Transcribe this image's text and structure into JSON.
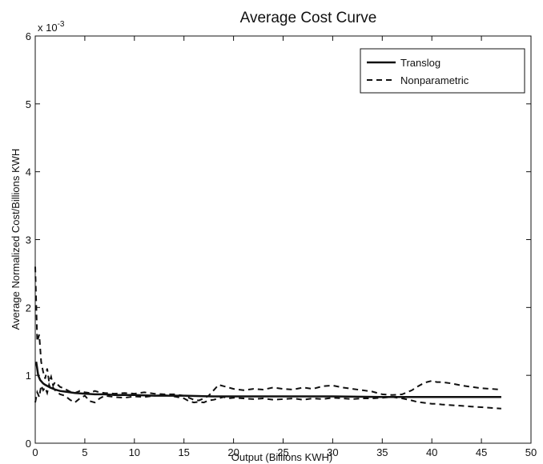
{
  "chart_data": {
    "type": "line",
    "title": "Average Cost Curve",
    "xlabel": "Output (Billions KWH)",
    "ylabel": "Average Normalized Cost/Billions KWH",
    "y_exponent_label": "x 10",
    "y_exponent_power": "-3",
    "xlim": [
      0,
      50
    ],
    "ylim": [
      0,
      6
    ],
    "x_ticks": [
      0,
      5,
      10,
      15,
      20,
      25,
      30,
      35,
      40,
      45,
      50
    ],
    "y_ticks": [
      0,
      1,
      2,
      3,
      4,
      5,
      6
    ],
    "grid": false,
    "legend_position": "top-right",
    "series": [
      {
        "name": "Translog",
        "style": "solid",
        "color": "#111111",
        "x": [
          0.1,
          0.3,
          0.5,
          0.8,
          1,
          1.5,
          2,
          2.5,
          3,
          4,
          5,
          6,
          7,
          8,
          10,
          12,
          15,
          18,
          20,
          25,
          30,
          35,
          40,
          45,
          47
        ],
        "y": [
          1.2,
          1.0,
          0.93,
          0.88,
          0.86,
          0.82,
          0.79,
          0.77,
          0.76,
          0.74,
          0.73,
          0.72,
          0.72,
          0.71,
          0.71,
          0.7,
          0.7,
          0.69,
          0.69,
          0.69,
          0.69,
          0.68,
          0.68,
          0.68,
          0.68
        ]
      },
      {
        "name": "Nonparametric",
        "style": "dashed",
        "color": "#111111",
        "bands": [
          {
            "x": [
              0,
              0.2,
              0.4,
              0.6,
              0.8,
              1.0,
              1.2,
              1.4,
              1.6,
              1.8,
              2.0,
              2.5,
              3,
              3.5,
              4,
              4.5,
              5,
              5.5,
              6,
              6.5,
              7,
              8,
              9,
              10,
              11,
              12,
              13,
              14,
              15,
              15.5,
              16,
              16.5,
              17,
              17.5,
              18,
              18.5,
              19,
              19.5,
              20,
              21,
              22,
              23,
              24,
              25,
              26,
              27,
              28,
              29,
              30,
              31,
              32,
              33,
              34,
              35,
              36,
              37,
              38,
              38.5,
              39,
              39.5,
              40,
              40.5,
              41,
              42,
              43,
              44,
              45,
              46,
              47
            ],
            "y": [
              2.6,
              1.5,
              1.6,
              1.2,
              1.05,
              0.95,
              1.1,
              0.9,
              0.98,
              0.85,
              0.9,
              0.83,
              0.8,
              0.76,
              0.74,
              0.77,
              0.75,
              0.74,
              0.77,
              0.75,
              0.74,
              0.73,
              0.74,
              0.73,
              0.75,
              0.73,
              0.72,
              0.72,
              0.7,
              0.67,
              0.64,
              0.63,
              0.66,
              0.7,
              0.78,
              0.86,
              0.84,
              0.82,
              0.8,
              0.78,
              0.8,
              0.79,
              0.82,
              0.8,
              0.79,
              0.82,
              0.8,
              0.84,
              0.85,
              0.82,
              0.8,
              0.78,
              0.76,
              0.72,
              0.71,
              0.72,
              0.78,
              0.83,
              0.87,
              0.9,
              0.92,
              0.9,
              0.9,
              0.88,
              0.85,
              0.83,
              0.81,
              0.8,
              0.79
            ]
          },
          {
            "x": [
              0,
              0.2,
              0.4,
              0.6,
              0.8,
              1.0,
              1.2,
              1.4,
              1.6,
              1.8,
              2.0,
              2.5,
              3,
              3.5,
              4,
              4.5,
              5,
              5.5,
              6,
              6.5,
              7,
              8,
              9,
              10,
              11,
              12,
              13,
              14,
              15,
              15.5,
              16,
              16.5,
              17,
              17.5,
              18,
              18.5,
              19,
              19.5,
              20,
              21,
              22,
              23,
              24,
              25,
              26,
              27,
              28,
              29,
              30,
              31,
              32,
              33,
              34,
              35,
              36,
              37,
              38,
              38.5,
              39,
              39.5,
              40,
              40.5,
              41,
              42,
              43,
              44,
              45,
              46,
              47
            ],
            "y": [
              0.6,
              0.75,
              0.68,
              0.85,
              0.78,
              0.82,
              0.74,
              0.86,
              0.78,
              0.82,
              0.78,
              0.72,
              0.7,
              0.64,
              0.6,
              0.66,
              0.7,
              0.62,
              0.6,
              0.66,
              0.7,
              0.68,
              0.67,
              0.69,
              0.68,
              0.7,
              0.71,
              0.69,
              0.66,
              0.62,
              0.6,
              0.61,
              0.6,
              0.63,
              0.64,
              0.66,
              0.68,
              0.66,
              0.67,
              0.66,
              0.65,
              0.66,
              0.64,
              0.65,
              0.66,
              0.64,
              0.66,
              0.65,
              0.67,
              0.66,
              0.65,
              0.66,
              0.66,
              0.67,
              0.68,
              0.66,
              0.63,
              0.61,
              0.6,
              0.59,
              0.58,
              0.58,
              0.57,
              0.56,
              0.55,
              0.54,
              0.53,
              0.52,
              0.51
            ]
          }
        ]
      }
    ]
  }
}
